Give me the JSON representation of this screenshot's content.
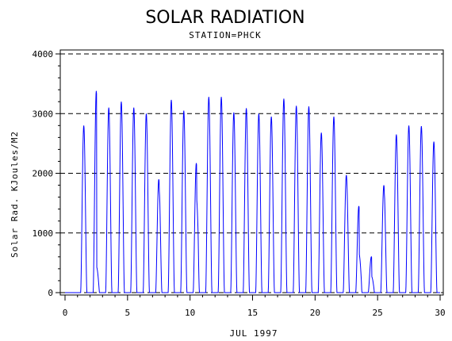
{
  "chart_data": {
    "type": "line",
    "title": "SOLAR RADIATION",
    "subtitle": "STATION=PHCK",
    "xlabel": "JUL 1997",
    "ylabel": "Solar Rad. KJoules/M2",
    "xlim": [
      0,
      30
    ],
    "ylim": [
      0,
      4000
    ],
    "x_ticks": [
      0,
      5,
      10,
      15,
      20,
      25,
      30
    ],
    "y_ticks": [
      0,
      1000,
      2000,
      3000,
      4000
    ],
    "grid": "horizontal dashed",
    "line_color": "#0000ff",
    "series": [
      {
        "daily_peaks": [
          {
            "day": 1,
            "peak": 2800,
            "shoulder": 2500
          },
          {
            "day": 2,
            "peak": 3380,
            "shoulder": 400
          },
          {
            "day": 3,
            "peak": 3100
          },
          {
            "day": 4,
            "peak": 3200
          },
          {
            "day": 5,
            "peak": 3100
          },
          {
            "day": 6,
            "peak": 3000
          },
          {
            "day": 7,
            "peak": 1900,
            "shoulder": 1600
          },
          {
            "day": 8,
            "peak": 3230
          },
          {
            "day": 9,
            "peak": 3050
          },
          {
            "day": 10,
            "peak": 2170,
            "shoulder": 1450
          },
          {
            "day": 11,
            "peak": 3280
          },
          {
            "day": 12,
            "peak": 3280
          },
          {
            "day": 13,
            "peak": 3020
          },
          {
            "day": 14,
            "peak": 3090
          },
          {
            "day": 15,
            "peak": 3000
          },
          {
            "day": 16,
            "peak": 2950
          },
          {
            "day": 17,
            "peak": 3250
          },
          {
            "day": 18,
            "peak": 3130
          },
          {
            "day": 19,
            "peak": 3120
          },
          {
            "day": 20,
            "peak": 2680
          },
          {
            "day": 21,
            "peak": 2950
          },
          {
            "day": 22,
            "peak": 1970
          },
          {
            "day": 23,
            "peak": 1450,
            "shoulder": 600
          },
          {
            "day": 24,
            "peak": 600,
            "shoulder": 250
          },
          {
            "day": 25,
            "peak": 1800,
            "shoulder": 1550
          },
          {
            "day": 26,
            "peak": 2650
          },
          {
            "day": 27,
            "peak": 2800
          },
          {
            "day": 28,
            "peak": 2790
          },
          {
            "day": 29,
            "peak": 2530
          }
        ]
      }
    ]
  }
}
